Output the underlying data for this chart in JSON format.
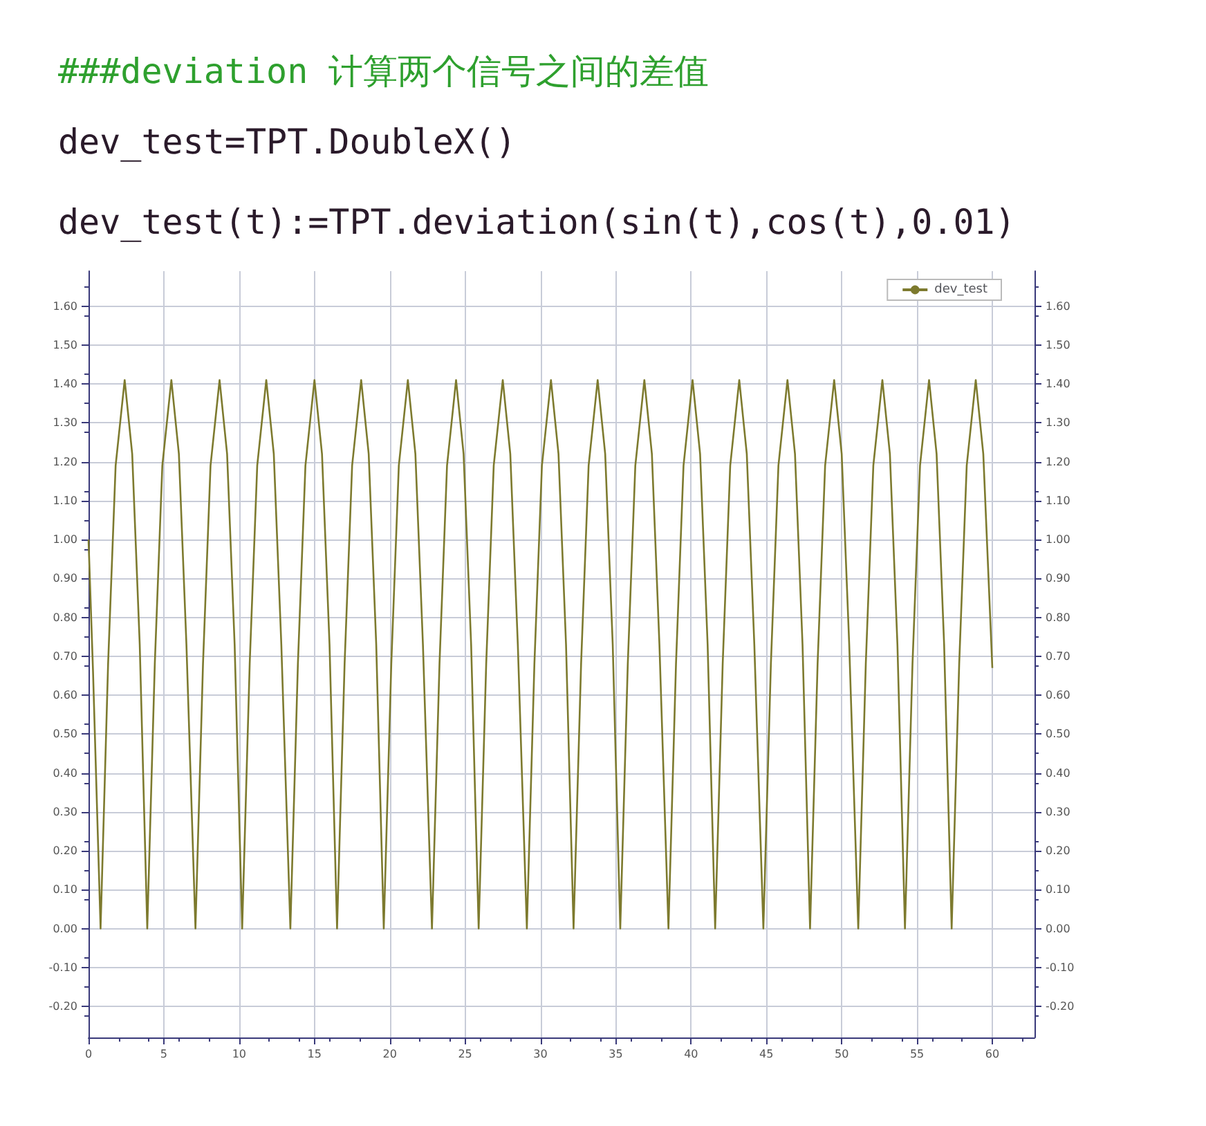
{
  "chart_data": {
    "type": "line",
    "title": "###deviation 计算两个信号之间的差值",
    "annotations": [
      "dev_test=TPT.DoubleX()",
      "dev_test(t):=TPT.deviation(sin(t),cos(t),0.01)"
    ],
    "series": [
      {
        "name": "dev_test",
        "color": "#7d7a2e",
        "x": [
          0.0,
          0.3,
          0.8,
          1.3,
          1.8,
          2.4,
          2.9,
          3.4,
          3.9,
          4.4,
          4.9,
          5.5,
          6.0,
          6.5,
          7.1,
          7.6,
          8.1,
          8.7,
          9.2,
          9.7,
          10.2,
          10.7,
          11.2,
          11.8,
          12.3,
          12.8,
          13.4,
          13.9,
          14.4,
          15.0,
          15.5,
          16.0,
          16.5,
          17.0,
          17.5,
          18.1,
          18.6,
          19.1,
          19.6,
          20.1,
          20.6,
          21.2,
          21.7,
          22.2,
          22.8,
          23.3,
          23.8,
          24.4,
          24.9,
          25.4,
          25.9,
          26.4,
          26.9,
          27.5,
          28.0,
          28.5,
          29.1,
          29.6,
          30.1,
          30.7,
          31.2,
          31.7,
          32.2,
          32.7,
          33.2,
          33.8,
          34.3,
          34.8,
          35.3,
          35.8,
          36.3,
          36.9,
          37.4,
          37.9,
          38.5,
          39.0,
          39.5,
          40.1,
          40.6,
          41.1,
          41.6,
          42.1,
          42.6,
          43.2,
          43.7,
          44.2,
          44.8,
          45.3,
          45.8,
          46.4,
          46.9,
          47.4,
          47.9,
          48.4,
          48.9,
          49.5,
          50.0,
          50.5,
          51.1,
          51.6,
          52.1,
          52.7,
          53.2,
          53.7,
          54.2,
          54.7,
          55.2,
          55.8,
          56.3,
          56.8,
          57.3,
          57.8,
          58.3,
          58.9,
          59.4,
          60.0
        ],
        "values": [
          1.0,
          0.66,
          0,
          0.68,
          1.19,
          1.41,
          1.22,
          0.73,
          0,
          0.68,
          1.19,
          1.41,
          1.22,
          0.73,
          0,
          0.68,
          1.19,
          1.41,
          1.22,
          0.73,
          0,
          0.68,
          1.19,
          1.41,
          1.22,
          0.73,
          0,
          0.68,
          1.19,
          1.41,
          1.22,
          0.73,
          0,
          0.68,
          1.19,
          1.41,
          1.22,
          0.73,
          0,
          0.68,
          1.19,
          1.41,
          1.22,
          0.73,
          0,
          0.68,
          1.19,
          1.41,
          1.22,
          0.73,
          0,
          0.68,
          1.19,
          1.41,
          1.22,
          0.73,
          0,
          0.68,
          1.19,
          1.41,
          1.22,
          0.73,
          0,
          0.68,
          1.19,
          1.41,
          1.22,
          0.73,
          0,
          0.68,
          1.19,
          1.41,
          1.22,
          0.73,
          0,
          0.68,
          1.19,
          1.41,
          1.22,
          0.73,
          0,
          0.68,
          1.19,
          1.41,
          1.22,
          0.73,
          0,
          0.68,
          1.19,
          1.41,
          1.22,
          0.73,
          0,
          0.68,
          1.19,
          1.41,
          1.22,
          0.73,
          0,
          0.68,
          1.19,
          1.41,
          1.22,
          0.73,
          0,
          0.68,
          1.19,
          1.41,
          1.22,
          0.73,
          0,
          0.68,
          1.19,
          1.41,
          1.22,
          0.67
        ]
      }
    ],
    "xlim": [
      0,
      62.8
    ],
    "xticks": [
      0,
      5,
      10,
      15,
      20,
      25,
      30,
      35,
      40,
      45,
      50,
      55,
      60
    ],
    "ylim": [
      -0.28,
      1.69
    ],
    "yticks": [
      {
        "value": -0.2,
        "label": "-0.20"
      },
      {
        "value": -0.1,
        "label": "-0.10"
      },
      {
        "value": 0,
        "label": "0.00"
      },
      {
        "value": 0.1,
        "label": "0.10"
      },
      {
        "value": 0.2,
        "label": "0.20"
      },
      {
        "value": 0.3,
        "label": "0.30"
      },
      {
        "value": 0.4,
        "label": "0.40"
      },
      {
        "value": 0.5,
        "label": "0.50"
      },
      {
        "value": 0.6,
        "label": "0.60"
      },
      {
        "value": 0.7,
        "label": "0.70"
      },
      {
        "value": 0.8,
        "label": "0.80"
      },
      {
        "value": 0.9,
        "label": "0.90"
      },
      {
        "value": 1.0,
        "label": "1.00"
      },
      {
        "value": 1.1,
        "label": "1.10"
      },
      {
        "value": 1.2,
        "label": "1.20"
      },
      {
        "value": 1.3,
        "label": "1.30"
      },
      {
        "value": 1.4,
        "label": "1.40"
      },
      {
        "value": 1.5,
        "label": "1.50"
      },
      {
        "value": 1.6,
        "label": "1.60"
      }
    ],
    "y2lim": [
      -0.28,
      1.69
    ],
    "y2ticks": [
      {
        "value": -0.2,
        "label": "-0.20"
      },
      {
        "value": -0.1,
        "label": "-0.10"
      },
      {
        "value": 0,
        "label": "0.00"
      },
      {
        "value": 0.1,
        "label": "0.10"
      },
      {
        "value": 0.2,
        "label": "0.20"
      },
      {
        "value": 0.3,
        "label": "0.30"
      },
      {
        "value": 0.4,
        "label": "0.40"
      },
      {
        "value": 0.5,
        "label": "0.50"
      },
      {
        "value": 0.6,
        "label": "0.60"
      },
      {
        "value": 0.7,
        "label": "0.70"
      },
      {
        "value": 0.8,
        "label": "0.80"
      },
      {
        "value": 0.9,
        "label": "0.90"
      },
      {
        "value": 1.0,
        "label": "1.00"
      },
      {
        "value": 1.1,
        "label": "1.10"
      },
      {
        "value": 1.2,
        "label": "1.20"
      },
      {
        "value": 1.3,
        "label": "1.30"
      },
      {
        "value": 1.4,
        "label": "1.40"
      },
      {
        "value": 1.5,
        "label": "1.50"
      },
      {
        "value": 1.6,
        "label": "1.60"
      }
    ],
    "grid": true,
    "legend": "top right",
    "marker": "none",
    "line_style": "solid"
  }
}
